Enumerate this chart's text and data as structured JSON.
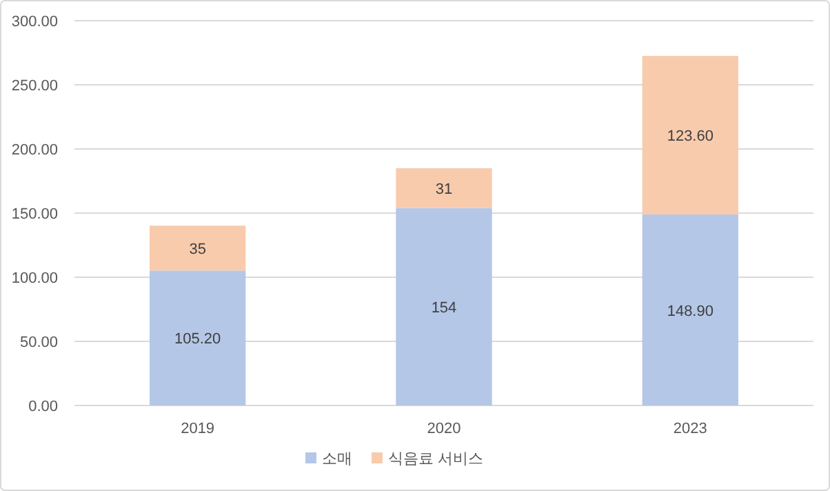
{
  "chart_data": {
    "type": "bar",
    "stacked": true,
    "categories": [
      "2019",
      "2020",
      "2023"
    ],
    "series": [
      {
        "name": "소매",
        "color": "#b4c7e7",
        "values": [
          105.2,
          154,
          148.9
        ],
        "value_labels": [
          "105.20",
          "154",
          "148.90"
        ]
      },
      {
        "name": "식음료 서비스",
        "color": "#f8cbad",
        "values": [
          35,
          31,
          123.6
        ],
        "value_labels": [
          "35",
          "31",
          "123.60"
        ]
      }
    ],
    "ylim": [
      0,
      300
    ],
    "yticks": [
      {
        "value": 0,
        "label": "0.00"
      },
      {
        "value": 50,
        "label": "50.00"
      },
      {
        "value": 100,
        "label": "100.00"
      },
      {
        "value": 150,
        "label": "150.00"
      },
      {
        "value": 200,
        "label": "200.00"
      },
      {
        "value": 250,
        "label": "250.00"
      },
      {
        "value": 300,
        "label": "300.00"
      }
    ],
    "grid": "y",
    "legend": "bottom"
  }
}
